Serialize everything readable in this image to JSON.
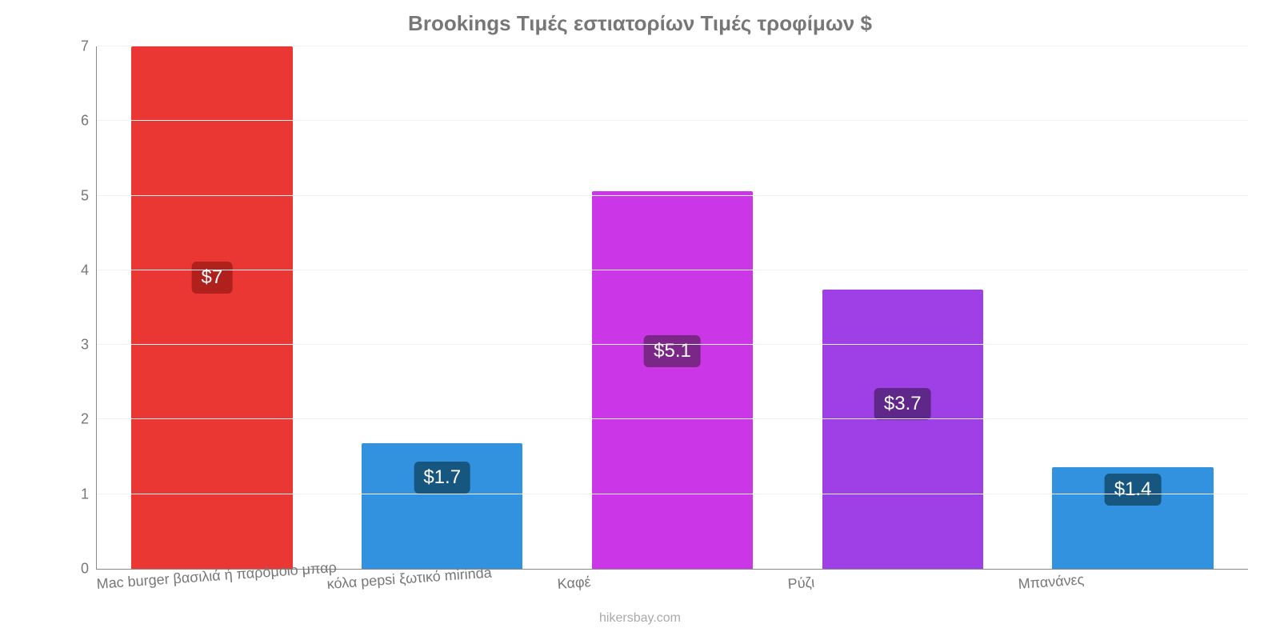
{
  "chart": {
    "type": "bar",
    "title": "Brookings Τιμές εστιατορίων Τιμές τροφίμων $",
    "title_color": "#777777",
    "title_fontsize": 26,
    "title_fontweight": 700,
    "background_color": "#ffffff",
    "grid_color": "#f2f2f2",
    "axis_line_color": "#888888",
    "tick_label_color": "#777777",
    "tick_label_fontsize": 18,
    "xlabel_color": "#777777",
    "xlabel_fontsize": 18,
    "attribution": "hikersbay.com",
    "attribution_color": "#aaaaaa",
    "attribution_fontsize": 16,
    "ylim": [
      0,
      7
    ],
    "yticks": [
      0,
      1,
      2,
      3,
      4,
      5,
      6,
      7
    ],
    "bar_width": 0.7,
    "badge_fontsize": 24,
    "badge_radius": 6,
    "bars": [
      {
        "category": "Mac burger βασιλιά ή παρόμοιο μπαρ",
        "value": 7.0,
        "display": "$7",
        "bar_color": "#ea3734",
        "badge_bg": "#b0201d",
        "badge_y": 3.9
      },
      {
        "category": "κόλα pepsi ξωτικό mirinda",
        "value": 1.68,
        "display": "$1.7",
        "bar_color": "#3292e0",
        "badge_bg": "#17567f",
        "badge_y": 1.22
      },
      {
        "category": "Καφέ",
        "value": 5.06,
        "display": "$5.1",
        "bar_color": "#cb36e7",
        "badge_bg": "#7a2788",
        "badge_y": 2.92
      },
      {
        "category": "Ρύζι",
        "value": 3.74,
        "display": "$3.7",
        "bar_color": "#9f3fe6",
        "badge_bg": "#5f2789",
        "badge_y": 2.21
      },
      {
        "category": "Μπανάνες",
        "value": 1.36,
        "display": "$1.4",
        "bar_color": "#3292e0",
        "badge_bg": "#17567f",
        "badge_y": 1.06
      }
    ]
  }
}
